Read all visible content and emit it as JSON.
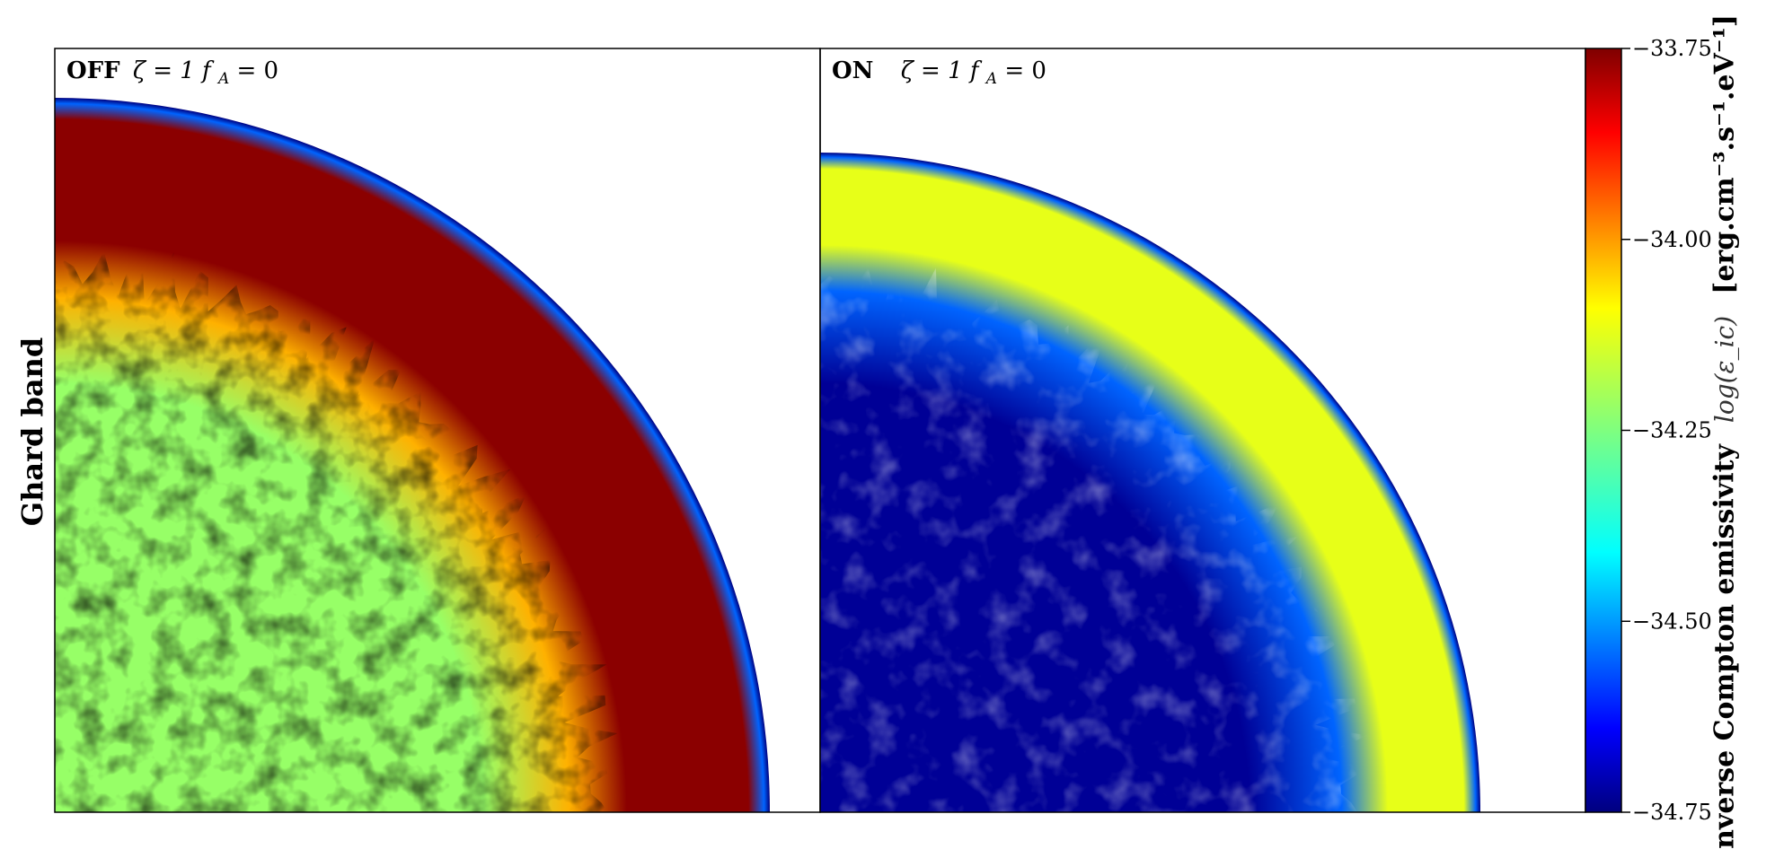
{
  "chart_data": {
    "type": "heatmap",
    "ylabel": "Ghard band",
    "panels": [
      {
        "label_bold": "OFF",
        "label_math": "ζ = 1 f",
        "label_sub": "A",
        "label_tail": " = 0",
        "shell_log_emissivity": -33.76,
        "interior_log_emissivity": -34.22,
        "mixing_front_log_emissivity": -34.02,
        "edge_log_emissivity": -34.75
      },
      {
        "label_bold": "ON",
        "label_math": "ζ = 1 f",
        "label_sub": "A",
        "label_tail": " = 0",
        "shell_log_emissivity": -34.12,
        "interior_log_emissivity": -34.73,
        "mixing_front_log_emissivity": -34.55,
        "edge_log_emissivity": -34.75
      }
    ],
    "colorbar": {
      "label_main": "nverse Compton emissivity",
      "label_math": "log(ε_ic)",
      "label_units": "[erg.cm⁻³.s⁻¹.eV⁻¹]",
      "range": [
        -34.75,
        -33.75
      ],
      "ticks": [
        -33.75,
        -34.0,
        -34.25,
        -34.5,
        -34.75
      ],
      "tick_labels": [
        "−33.75",
        "−34.00",
        "−34.25",
        "−34.50",
        "−34.75"
      ],
      "colormap": "jet"
    }
  }
}
